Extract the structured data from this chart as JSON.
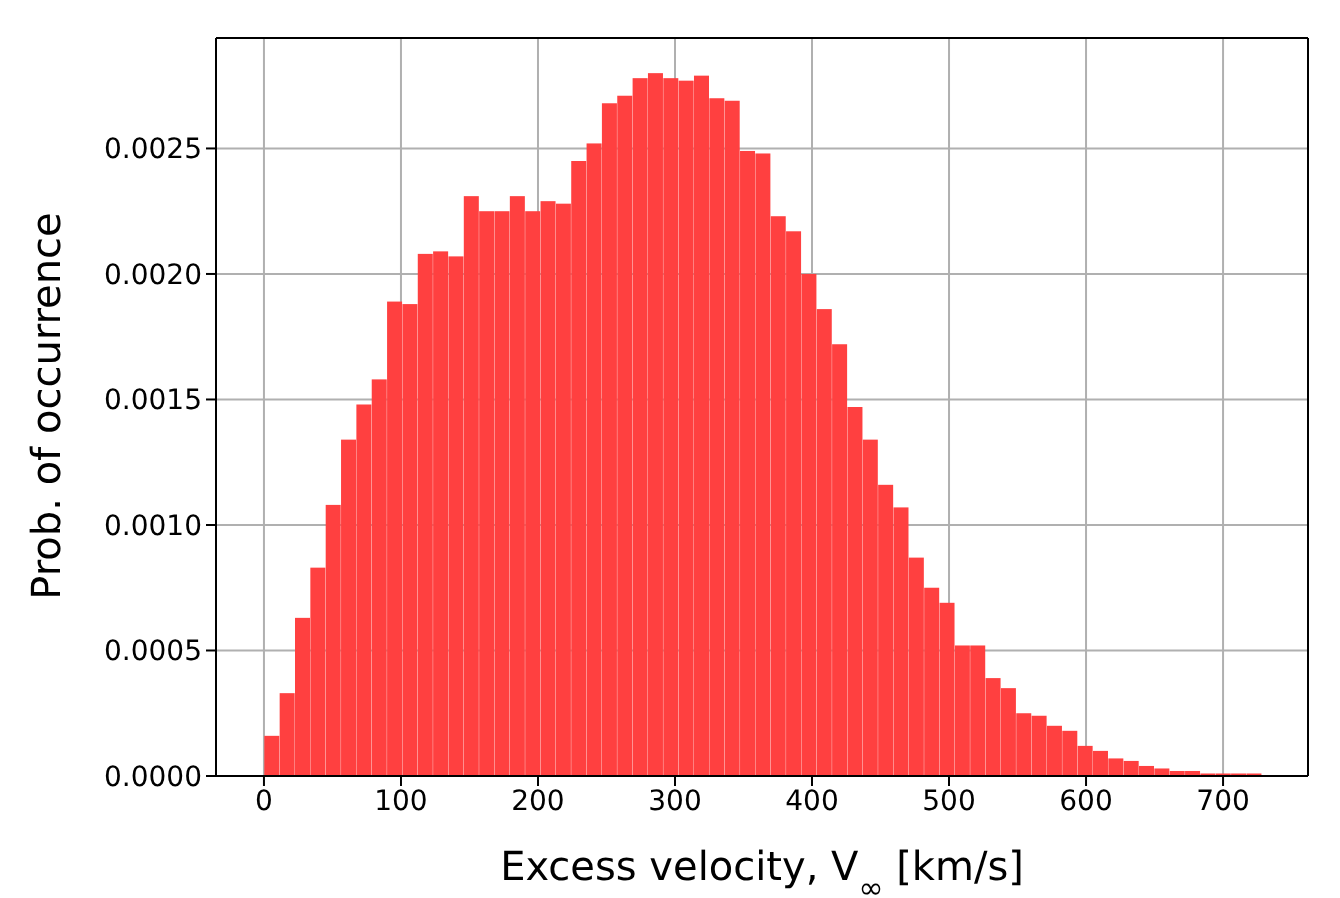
{
  "chart_data": {
    "type": "histogram",
    "xlabel": "Excess velocity, V$_{∞}$ [km/s]",
    "ylabel": "Prob. of occurrence",
    "color": "#ff4040",
    "bins": [
      0.7,
      11.9,
      23.1,
      34.3,
      45.5,
      56.7,
      67.9,
      79.1,
      90.3,
      101.5,
      112.7,
      123.9,
      135.1,
      146.3,
      157.5,
      168.7,
      179.9,
      191.1,
      202.3,
      213.5,
      224.7,
      235.9,
      247.1,
      258.3,
      269.5,
      280.7,
      291.9,
      303.1,
      314.3,
      325.5,
      336.7,
      347.9,
      359.1,
      370.3,
      381.5,
      392.7,
      403.9,
      415.1,
      426.3,
      437.5,
      448.7,
      459.9,
      471.1,
      482.3,
      493.5,
      504.7,
      515.9,
      527.1,
      538.3,
      549.5,
      560.7,
      571.9,
      583.1,
      594.3,
      605.5,
      616.7,
      627.9,
      639.1,
      650.3,
      661.5,
      672.7,
      683.9,
      695.1,
      706.3,
      717.5,
      728.7
    ],
    "values": [
      0.00016,
      0.00033,
      0.00063,
      0.00083,
      0.00108,
      0.00134,
      0.00148,
      0.00158,
      0.00189,
      0.00188,
      0.00208,
      0.00209,
      0.00207,
      0.00231,
      0.00225,
      0.00225,
      0.00231,
      0.00225,
      0.00229,
      0.00228,
      0.00245,
      0.00252,
      0.00268,
      0.00271,
      0.00278,
      0.0028,
      0.00278,
      0.00277,
      0.00279,
      0.0027,
      0.00269,
      0.00249,
      0.00248,
      0.00223,
      0.00217,
      0.002,
      0.00186,
      0.00172,
      0.00147,
      0.00134,
      0.00116,
      0.00107,
      0.00087,
      0.00075,
      0.00069,
      0.00052,
      0.00052,
      0.00039,
      0.00035,
      0.00025,
      0.00024,
      0.0002,
      0.00018,
      0.00012,
      0.0001,
      7e-05,
      6e-05,
      4e-05,
      3e-05,
      2e-05,
      2e-05,
      1e-05,
      1e-05,
      1e-05,
      1e-05
    ],
    "xlim": [
      -35,
      762
    ],
    "xticks": [
      0,
      100,
      200,
      300,
      400,
      500,
      600,
      700
    ],
    "ylim": [
      0,
      0.00294
    ],
    "yticks": [
      {
        "value": 0,
        "label": "0.0000"
      },
      {
        "value": 0.0005,
        "label": "0.0005"
      },
      {
        "value": 0.001,
        "label": "0.0010"
      },
      {
        "value": 0.0015,
        "label": "0.0015"
      },
      {
        "value": 0.002,
        "label": "0.0020"
      },
      {
        "value": 0.0025,
        "label": "0.0025"
      }
    ],
    "grid": true
  }
}
